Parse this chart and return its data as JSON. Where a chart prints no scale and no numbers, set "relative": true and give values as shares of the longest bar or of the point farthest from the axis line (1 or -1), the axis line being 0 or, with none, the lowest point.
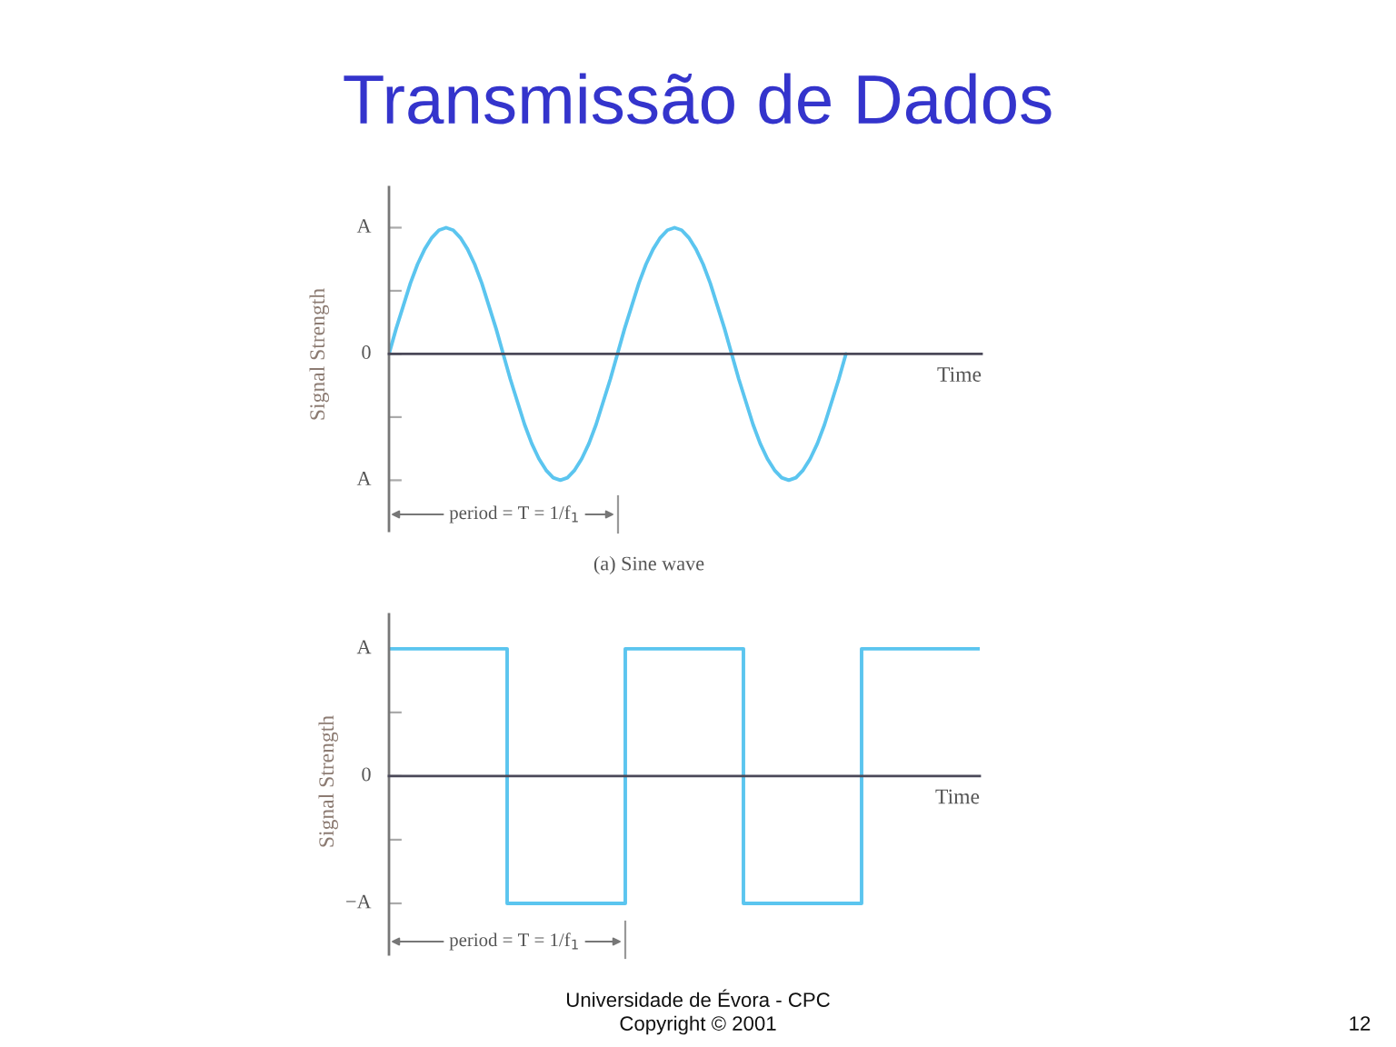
{
  "chart_data": [
    {
      "type": "line",
      "title": "Transmissão de Dados",
      "ylabel": "Signal Strength",
      "xlabel": "Time",
      "relative": true,
      "categories": [
        null,
        null,
        null,
        null,
        null,
        null,
        null,
        null,
        null,
        null,
        null,
        null,
        null,
        null,
        null,
        null,
        null,
        null,
        null,
        null,
        null,
        null,
        null,
        null,
        null,
        null,
        null,
        null,
        null,
        null,
        null,
        null,
        null,
        null,
        null,
        null,
        null,
        null,
        null,
        null,
        null,
        null,
        null,
        null,
        null,
        null,
        null,
        null,
        null,
        null,
        null,
        null,
        null,
        null,
        null,
        null,
        null,
        null,
        null,
        null,
        null,
        null,
        null,
        null,
        null,
        null,
        null,
        null,
        null,
        null,
        null,
        null,
        null,
        null,
        null,
        null,
        null,
        null,
        null,
        null,
        null,
        null,
        null,
        null
      ],
      "series": [
        {
          "color": "#5bc5ef",
          "values": [
            0,
            0.2,
            0.38,
            0.56,
            0.71,
            0.83,
            0.92,
            0.98,
            1,
            0.98,
            0.92,
            0.83,
            0.71,
            0.56,
            0.38,
            0.2,
            0,
            -0.2,
            -0.38,
            -0.56,
            -0.71,
            -0.83,
            -0.92,
            -0.98,
            -1,
            -0.98,
            -0.92,
            -0.83,
            -0.71,
            -0.56,
            -0.38,
            -0.2,
            0,
            0.2,
            0.38,
            0.56,
            0.71,
            0.83,
            0.92,
            0.98,
            1,
            0.98,
            0.92,
            0.83,
            0.71,
            0.56,
            0.38,
            0.2,
            0,
            -0.2,
            -0.38,
            -0.56,
            -0.71,
            -0.83,
            -0.92,
            -0.98,
            -1,
            -0.98,
            -0.92,
            -0.83,
            -0.71,
            -0.56,
            -0.38,
            -0.2,
            0,
            null,
            null,
            null,
            null,
            null,
            null,
            null,
            null,
            null,
            null,
            null,
            null,
            null,
            null,
            null,
            null,
            null,
            null,
            null
          ]
        }
      ],
      "annotations": [
        "A",
        "0",
        "A",
        "period = T = 1/f$_{1}$",
        "(a) Sine wave"
      ]
    },
    {
      "type": "step",
      "ylabel": "Signal Strength",
      "xlabel": "Time",
      "relative": true,
      "categories": [
        null,
        null,
        null,
        null,
        null,
        null
      ],
      "series": [
        {
          "color": "#5bc5ef",
          "values": [
            1,
            -1,
            1,
            -1,
            1,
            1
          ]
        }
      ],
      "annotations": [
        "A",
        "0",
        "−A",
        "period = T = 1/f$_{1}$",
        "Universidade de Évora - CPC",
        "Copyright © 2001",
        "12"
      ]
    }
  ]
}
